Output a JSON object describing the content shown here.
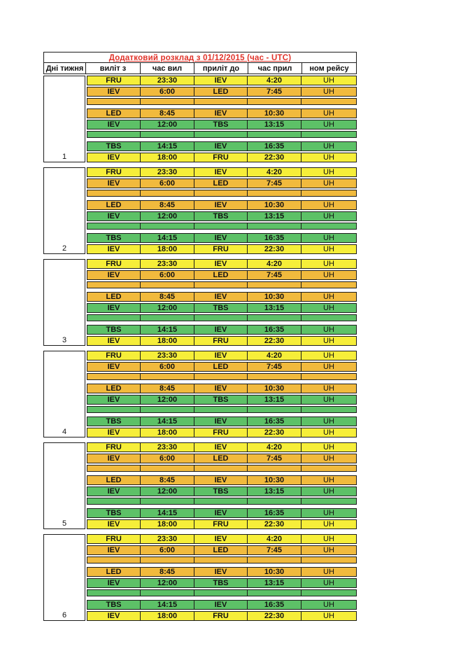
{
  "document": {
    "title": "Додатковий розклад з 01/12/2015 (час - UTC)",
    "title_color": "#e0332a"
  },
  "table": {
    "columns": [
      "Дні тижня",
      "виліт з",
      "час вил",
      "приліт до",
      "час прил",
      "ном рейсу"
    ],
    "days": [
      "1",
      "2",
      "3",
      "4",
      "5",
      "6"
    ],
    "colors": {
      "yellow": "#f6ee39",
      "orange": "#f1ba3d",
      "green": "#5dc167"
    },
    "daily_rows": [
      {
        "type": "flight",
        "color": "yellow",
        "from": "FRU",
        "dep": "23:30",
        "to": "IEV",
        "arr": "4:20",
        "flight": "UH"
      },
      {
        "type": "flight",
        "color": "orange",
        "from": "IEV",
        "dep": "6:00",
        "to": "LED",
        "arr": "7:45",
        "flight": "UH"
      },
      {
        "type": "spacer",
        "color": "orange"
      },
      {
        "type": "flight",
        "color": "orange",
        "from": "LED",
        "dep": "8:45",
        "to": "IEV",
        "arr": "10:30",
        "flight": "UH"
      },
      {
        "type": "flight",
        "color": "green",
        "from": "IEV",
        "dep": "12:00",
        "to": "TBS",
        "arr": "13:15",
        "flight": "UH"
      },
      {
        "type": "spacer",
        "color": "green"
      },
      {
        "type": "flight",
        "color": "green",
        "from": "TBS",
        "dep": "14:15",
        "to": "IEV",
        "arr": "16:35",
        "flight": "UH"
      },
      {
        "type": "flight",
        "color": "yellow",
        "from": "IEV",
        "dep": "18:00",
        "to": "FRU",
        "arr": "22:30",
        "flight": "UH"
      }
    ]
  }
}
